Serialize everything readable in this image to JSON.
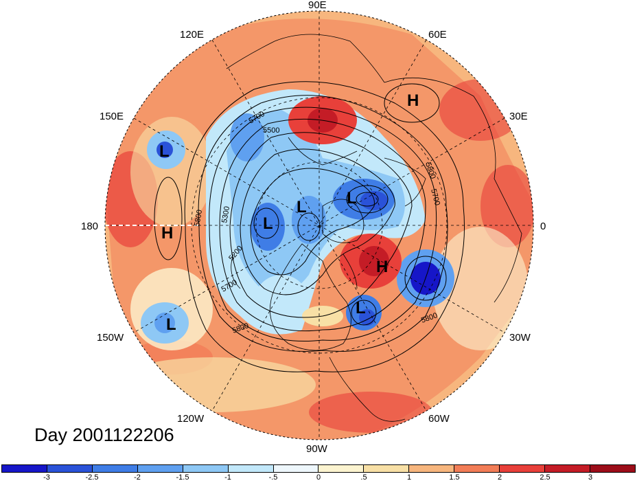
{
  "title": "Day 2001122206",
  "map": {
    "projection": "north polar stereographic",
    "longitude_labels": [
      "90E",
      "60E",
      "30E",
      "0",
      "30W",
      "60W",
      "90W",
      "120W",
      "150W",
      "180",
      "150E",
      "120E"
    ],
    "contour_labels": [
      "5700",
      "5500",
      "5800",
      "5700",
      "5800",
      "5300",
      "5200",
      "5700",
      "5800",
      "5800"
    ],
    "pressure_centers": [
      {
        "label": "H",
        "region": "north Siberia"
      },
      {
        "label": "L",
        "region": "west Pacific"
      },
      {
        "label": "H",
        "region": "central Pacific"
      },
      {
        "label": "L",
        "region": "east Pacific"
      },
      {
        "label": "L",
        "region": "Arctic / East Siberia"
      },
      {
        "label": "L",
        "region": "Arctic"
      },
      {
        "label": "L",
        "region": "Barents / Scandinavia"
      },
      {
        "label": "H",
        "region": "Greenland"
      },
      {
        "label": "L",
        "region": "Labrador Sea"
      }
    ],
    "colors": {
      "coast_lines": "#000000",
      "grid_lines": "#000000"
    }
  },
  "colorbar": {
    "labels": [
      "-3",
      "-2.5",
      "-2",
      "-1.5",
      "-1",
      "-.5",
      "0",
      ".5",
      "1",
      "1.5",
      "2",
      "2.5",
      "3"
    ],
    "colors": [
      "#1616c8",
      "#2a52d8",
      "#3f7de6",
      "#5fa0f0",
      "#8ec8f5",
      "#c2e8fa",
      "#eef7fc",
      "#fcf4d0",
      "#f8e0a6",
      "#f7b67e",
      "#f27d57",
      "#e8403a",
      "#c41c26",
      "#9c0d19"
    ]
  }
}
